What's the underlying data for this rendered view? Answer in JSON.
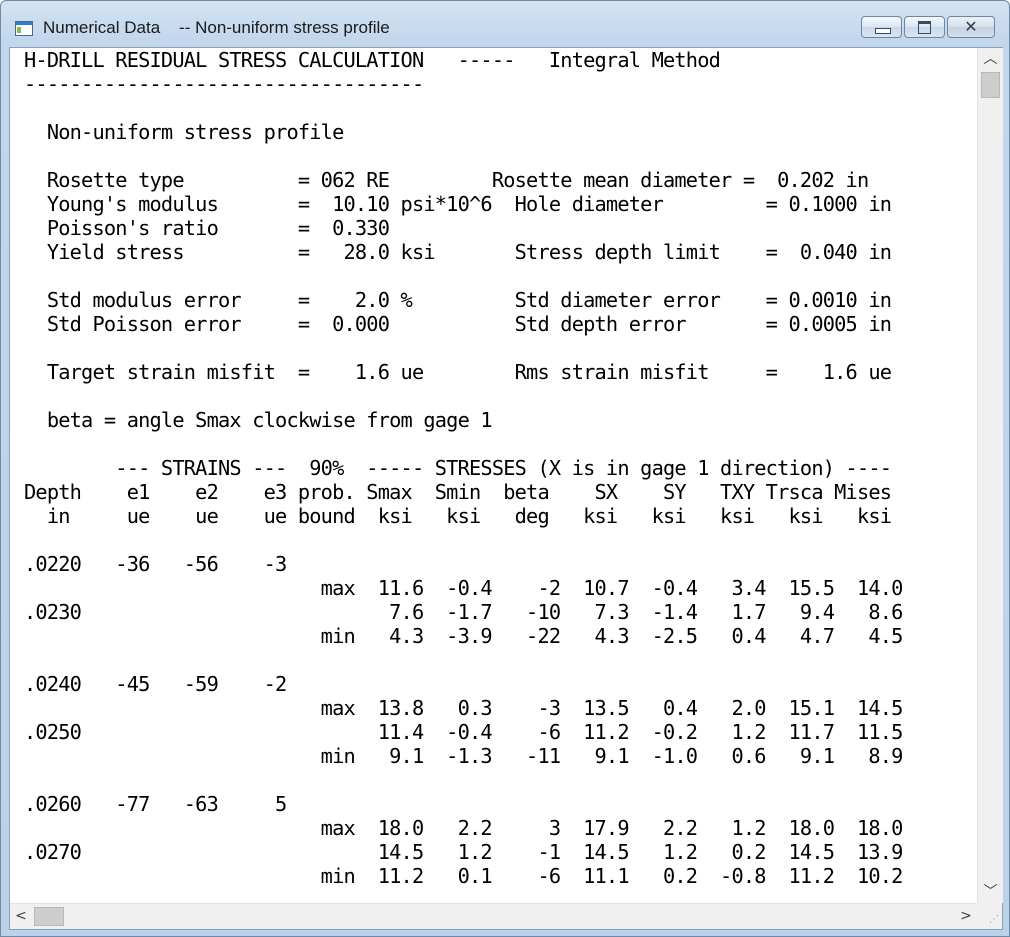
{
  "window": {
    "title": "Numerical Data    -- Non-uniform stress profile",
    "close_glyph": "✕"
  },
  "report": {
    "lines": [
      "H-DRILL RESIDUAL STRESS CALCULATION   -----   Integral Method",
      "-----------------------------------",
      "",
      "  Non-uniform stress profile",
      "",
      "  Rosette type          = 062 RE         Rosette mean diameter =  0.202 in",
      "  Young's modulus       =  10.10 psi*10^6  Hole diameter         = 0.1000 in",
      "  Poisson's ratio       =  0.330",
      "  Yield stress          =   28.0 ksi       Stress depth limit    =  0.040 in",
      "",
      "  Std modulus error     =    2.0 %         Std diameter error    = 0.0010 in",
      "  Std Poisson error     =  0.000           Std depth error       = 0.0005 in",
      "",
      "  Target strain misfit  =    1.6 ue        Rms strain misfit     =    1.6 ue",
      "",
      "  beta = angle Smax clockwise from gage 1",
      "",
      "        --- STRAINS ---  90%  ----- STRESSES (X is in gage 1 direction) ----",
      "Depth    e1    e2    e3 prob. Smax  Smin  beta    SX    SY   TXY Trsca Mises",
      "  in     ue    ue    ue bound  ksi   ksi   deg   ksi   ksi   ksi   ksi   ksi",
      "",
      ".0220   -36   -56    -3",
      "                          max  11.6  -0.4    -2  10.7  -0.4   3.4  15.5  14.0",
      ".0230                           7.6  -1.7   -10   7.3  -1.4   1.7   9.4   8.6",
      "                          min   4.3  -3.9   -22   4.3  -2.5   0.4   4.7   4.5",
      "",
      ".0240   -45   -59    -2",
      "                          max  13.8   0.3    -3  13.5   0.4   2.0  15.1  14.5",
      ".0250                          11.4  -0.4    -6  11.2  -0.2   1.2  11.7  11.5",
      "                          min   9.1  -1.3   -11   9.1  -1.0   0.6   9.1   8.9",
      "",
      ".0260   -77   -63     5",
      "                          max  18.0   2.2     3  17.9   2.2   1.2  18.0  18.0",
      ".0270                          14.5   1.2    -1  14.5   1.2   0.2  14.5  13.9",
      "                          min  11.2   0.1    -6  11.1   0.2  -0.8  11.2  10.2"
    ]
  },
  "scrollbars": {
    "up_arrow": "︿",
    "down_arrow": "﹀",
    "left_arrow": "<",
    "right_arrow": ">",
    "grip": "⋰"
  }
}
